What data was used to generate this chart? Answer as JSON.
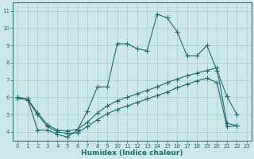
{
  "title": "",
  "xlabel": "Humidex (Indice chaleur)",
  "xlim": [
    -0.5,
    23.5
  ],
  "ylim": [
    3.5,
    11.5
  ],
  "xticks": [
    0,
    1,
    2,
    3,
    4,
    5,
    6,
    7,
    8,
    9,
    10,
    11,
    12,
    13,
    14,
    15,
    16,
    17,
    18,
    19,
    20,
    21,
    22,
    23
  ],
  "yticks": [
    4,
    5,
    6,
    7,
    8,
    9,
    10,
    11
  ],
  "bg_color": "#cce8ea",
  "grid_color": "#aacccc",
  "line_color": "#1a6b6b",
  "line1_x": [
    0,
    1,
    2,
    3,
    4,
    5,
    6,
    7,
    8,
    9,
    10,
    11,
    12,
    13,
    14,
    15,
    16,
    17,
    18,
    19,
    20,
    21,
    22
  ],
  "line1_y": [
    5.9,
    5.9,
    4.1,
    4.1,
    3.85,
    3.7,
    4.1,
    5.2,
    6.6,
    6.6,
    9.1,
    9.1,
    8.8,
    8.7,
    10.8,
    10.6,
    9.8,
    8.4,
    8.4,
    9.0,
    7.55,
    6.05,
    5.0
  ],
  "line2_x": [
    0,
    1,
    2,
    3,
    4,
    5,
    6,
    7,
    8,
    9,
    10,
    11,
    12,
    13,
    14,
    15,
    16,
    17,
    18,
    19,
    20,
    21,
    22
  ],
  "line2_y": [
    6.0,
    5.9,
    5.1,
    4.4,
    4.1,
    4.05,
    4.15,
    4.55,
    5.1,
    5.5,
    5.8,
    6.0,
    6.2,
    6.4,
    6.6,
    6.85,
    7.05,
    7.25,
    7.4,
    7.55,
    7.7,
    4.5,
    4.35
  ],
  "line3_x": [
    0,
    1,
    2,
    3,
    4,
    5,
    6,
    7,
    8,
    9,
    10,
    11,
    12,
    13,
    14,
    15,
    16,
    17,
    18,
    19,
    20,
    21,
    22
  ],
  "line3_y": [
    6.0,
    5.85,
    5.0,
    4.3,
    4.0,
    3.9,
    3.95,
    4.3,
    4.7,
    5.05,
    5.3,
    5.5,
    5.7,
    5.9,
    6.1,
    6.3,
    6.55,
    6.75,
    6.95,
    7.1,
    6.85,
    4.3,
    4.35
  ]
}
